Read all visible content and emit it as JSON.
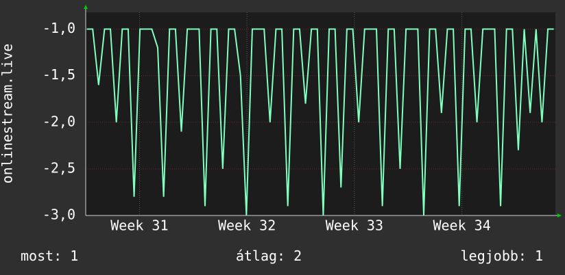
{
  "chart_data": {
    "type": "line",
    "y_label": "onlinestream.live",
    "x": [
      30.51,
      30.565,
      30.62,
      30.675,
      30.73,
      30.785,
      30.84,
      30.895,
      30.95,
      31.005,
      31.06,
      31.115,
      31.17,
      31.225,
      31.28,
      31.335,
      31.39,
      31.445,
      31.5,
      31.555,
      31.61,
      31.665,
      31.72,
      31.775,
      31.83,
      31.885,
      31.94,
      31.995,
      32.05,
      32.105,
      32.16,
      32.215,
      32.27,
      32.325,
      32.38,
      32.435,
      32.49,
      32.545,
      32.6,
      32.655,
      32.71,
      32.765,
      32.82,
      32.875,
      32.93,
      32.985,
      33.04,
      33.095,
      33.15,
      33.205,
      33.26,
      33.315,
      33.37,
      33.425,
      33.48,
      33.535,
      33.59,
      33.645,
      33.7,
      33.755,
      33.81,
      33.865,
      33.92,
      33.975,
      34.03,
      34.085,
      34.14,
      34.195,
      34.25,
      34.305,
      34.36,
      34.415,
      34.47,
      34.525,
      34.58,
      34.635,
      34.69,
      34.745,
      34.8,
      34.855
    ],
    "values": [
      -1,
      -1,
      -1.6,
      -1,
      -1,
      -2,
      -1,
      -1,
      -2.8,
      -1,
      -1,
      -1,
      -1.2,
      -2.8,
      -1,
      -1,
      -2.1,
      -1,
      -1,
      -1,
      -2.9,
      -1,
      -1,
      -2.5,
      -1,
      -1,
      -1.5,
      -3,
      -1,
      -1,
      -1,
      -2,
      -1,
      -1,
      -2.9,
      -1,
      -1,
      -1.8,
      -1,
      -1,
      -3,
      -1,
      -1,
      -2.7,
      -1,
      -1,
      -2,
      -1,
      -1,
      -1,
      -2.9,
      -1,
      -1,
      -2.5,
      -1,
      -1,
      -1,
      -3,
      -1,
      -1,
      -1.9,
      -1,
      -1,
      -2.9,
      -1,
      -1,
      -2,
      -1,
      -1,
      -1,
      -2.9,
      -1,
      -1,
      -2.3,
      -1,
      -1.9,
      -1,
      -2,
      -1,
      -1
    ],
    "color": "#80ffbf",
    "xlim": [
      30.5,
      34.87
    ],
    "xticks": [
      {
        "value": 31,
        "label": "Week 31"
      },
      {
        "value": 32,
        "label": "Week 32"
      },
      {
        "value": 33,
        "label": "Week 33"
      },
      {
        "value": 34,
        "label": "Week 34"
      }
    ],
    "ylim": [
      -3,
      -0.82
    ],
    "yticks": [
      {
        "value": -3,
        "label": "-3,0"
      },
      {
        "value": -2.5,
        "label": "-2,5"
      },
      {
        "value": -2,
        "label": "-2,0"
      },
      {
        "value": -1.5,
        "label": "-1,5"
      },
      {
        "value": -1,
        "label": "-1,0"
      }
    ],
    "grid": true,
    "stats": [
      {
        "label": "most:",
        "value": 1
      },
      {
        "label": "átlag:",
        "value": 2
      },
      {
        "label": "legjobb:",
        "value": 1
      }
    ]
  }
}
